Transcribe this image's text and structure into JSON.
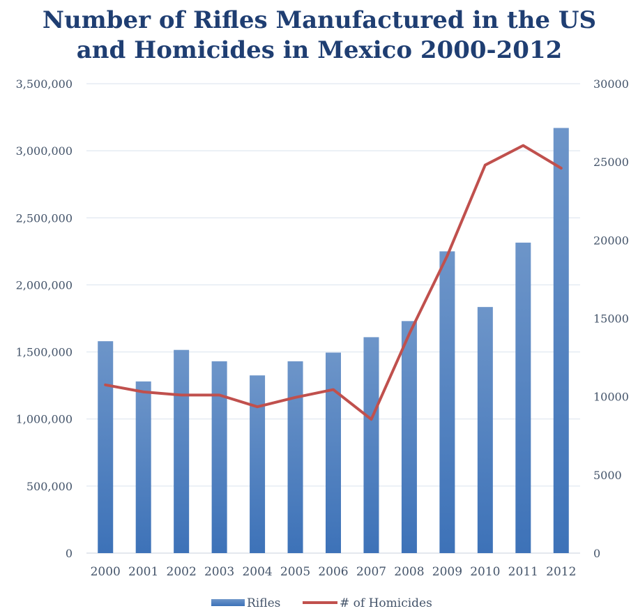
{
  "chart_data": {
    "type": "bar",
    "title_lines": [
      "Number of Rifles Manufactured in the US",
      "and Homicides in Mexico 2000-2012"
    ],
    "categories": [
      "2000",
      "2001",
      "2002",
      "2003",
      "2004",
      "2005",
      "2006",
      "2007",
      "2008",
      "2009",
      "2010",
      "2011",
      "2012"
    ],
    "series": [
      {
        "name": "Rifles",
        "type": "bar",
        "axis": "left",
        "color": "#4a7ebf",
        "values": [
          1580000,
          1280000,
          1515000,
          1430000,
          1325000,
          1430000,
          1495000,
          1610000,
          1730000,
          2250000,
          1835000,
          2315000,
          3170000
        ]
      },
      {
        "name": "# of Homicides",
        "type": "line",
        "axis": "right",
        "color": "#c0504d",
        "values": [
          10750,
          10300,
          10100,
          10100,
          9350,
          9950,
          10450,
          8550,
          14000,
          19000,
          24800,
          26050,
          24600
        ]
      }
    ],
    "y_left": {
      "min": 0,
      "max": 3500000,
      "ticks": [
        0,
        500000,
        1000000,
        1500000,
        2000000,
        2500000,
        3000000,
        3500000
      ],
      "tick_labels": [
        "0",
        "500,000",
        "1,000,000",
        "1,500,000",
        "2,000,000",
        "2,500,000",
        "3,000,000",
        "3,500,000"
      ]
    },
    "y_right": {
      "min": 0,
      "max": 30000,
      "ticks": [
        0,
        5000,
        10000,
        15000,
        20000,
        25000,
        30000
      ],
      "tick_labels": [
        "0",
        "5000",
        "10000",
        "15000",
        "20000",
        "25000",
        "30000"
      ]
    },
    "grid": true,
    "legend_position": "bottom"
  }
}
